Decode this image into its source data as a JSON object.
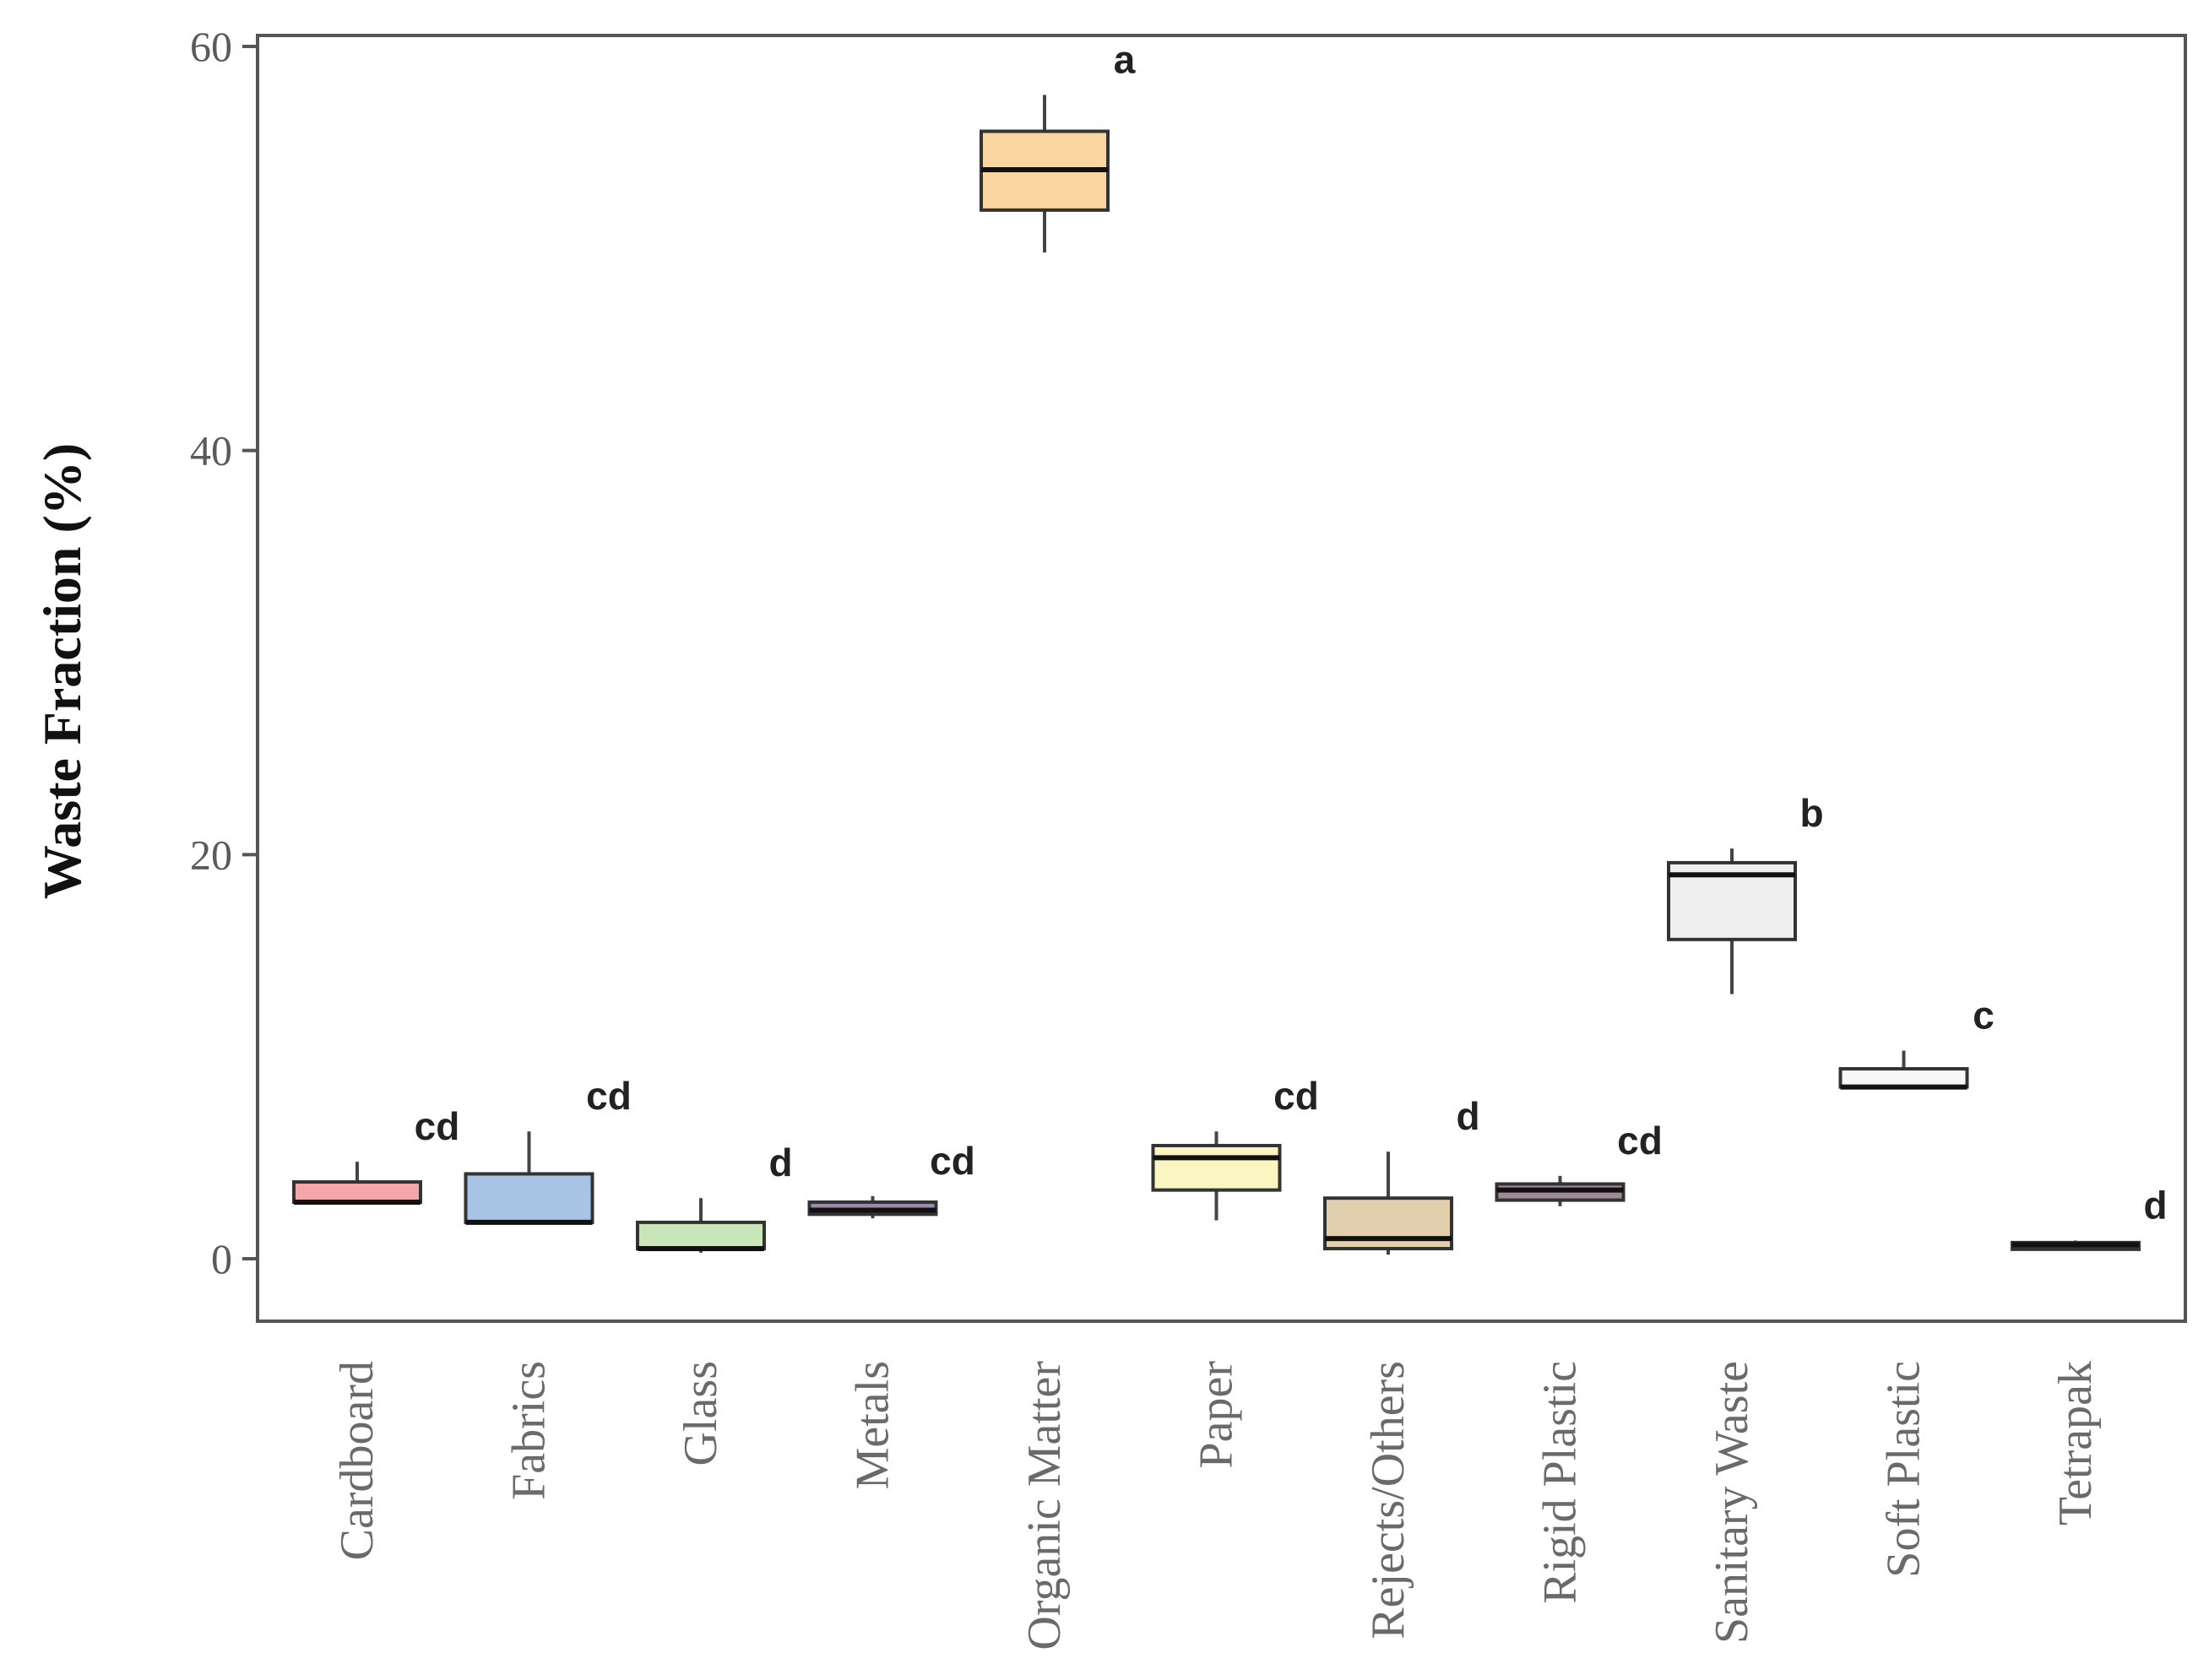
{
  "chart_data": {
    "type": "box",
    "title": "",
    "xlabel": "",
    "ylabel": "Waste Fraction (%)",
    "ylim": [
      -3,
      61
    ],
    "yticks": [
      0,
      20,
      40,
      60
    ],
    "grid": false,
    "categories": [
      "Cardboard",
      "Fabrics",
      "Glass",
      "Metals",
      "Organic Matter",
      "Paper",
      "Rejects/Others",
      "Rigid Plastic",
      "Sanitary Waste",
      "Soft Plastic",
      "Tetrapak"
    ],
    "boxes": [
      {
        "category": "Cardboard",
        "min": 2.8,
        "q1": 2.8,
        "median": 2.8,
        "q3": 3.8,
        "max": 4.8,
        "color": "#f4a7a7",
        "group": "cd"
      },
      {
        "category": "Fabrics",
        "min": 1.8,
        "q1": 1.8,
        "median": 1.8,
        "q3": 4.2,
        "max": 6.3,
        "color": "#a7c4e4",
        "group": "cd"
      },
      {
        "category": "Glass",
        "min": 0.3,
        "q1": 0.5,
        "median": 0.5,
        "q3": 1.8,
        "max": 3.0,
        "color": "#c8e6b8",
        "group": "d"
      },
      {
        "category": "Metals",
        "min": 2.0,
        "q1": 2.2,
        "median": 2.4,
        "q3": 2.8,
        "max": 3.1,
        "color": "#9a8ca8",
        "group": "cd"
      },
      {
        "category": "Organic Matter",
        "min": 49.8,
        "q1": 51.9,
        "median": 53.9,
        "q3": 55.8,
        "max": 57.6,
        "color": "#fad7a0",
        "group": "a"
      },
      {
        "category": "Paper",
        "min": 1.9,
        "q1": 3.4,
        "median": 5.0,
        "q3": 5.6,
        "max": 6.3,
        "color": "#fbf6c1",
        "group": "cd"
      },
      {
        "category": "Rejects/Others",
        "min": 0.2,
        "q1": 0.5,
        "median": 1.0,
        "q3": 3.0,
        "max": 5.3,
        "color": "#e2cfae",
        "group": "d"
      },
      {
        "category": "Rigid Plastic",
        "min": 2.6,
        "q1": 2.9,
        "median": 3.4,
        "q3": 3.7,
        "max": 4.1,
        "color": "#9c8a99",
        "group": "cd"
      },
      {
        "category": "Sanitary Waste",
        "min": 13.1,
        "q1": 15.8,
        "median": 19.0,
        "q3": 19.6,
        "max": 20.3,
        "color": "#efefef",
        "group": "b"
      },
      {
        "category": "Soft Plastic",
        "min": 8.5,
        "q1": 8.5,
        "median": 8.5,
        "q3": 9.4,
        "max": 10.3,
        "color": "#f6f6f6",
        "group": "c"
      },
      {
        "category": "Tetrapak",
        "min": 0.6,
        "q1": 0.6,
        "median": 0.7,
        "q3": 0.8,
        "max": 0.9,
        "color": "#2a2a2a",
        "group": "d"
      }
    ]
  }
}
